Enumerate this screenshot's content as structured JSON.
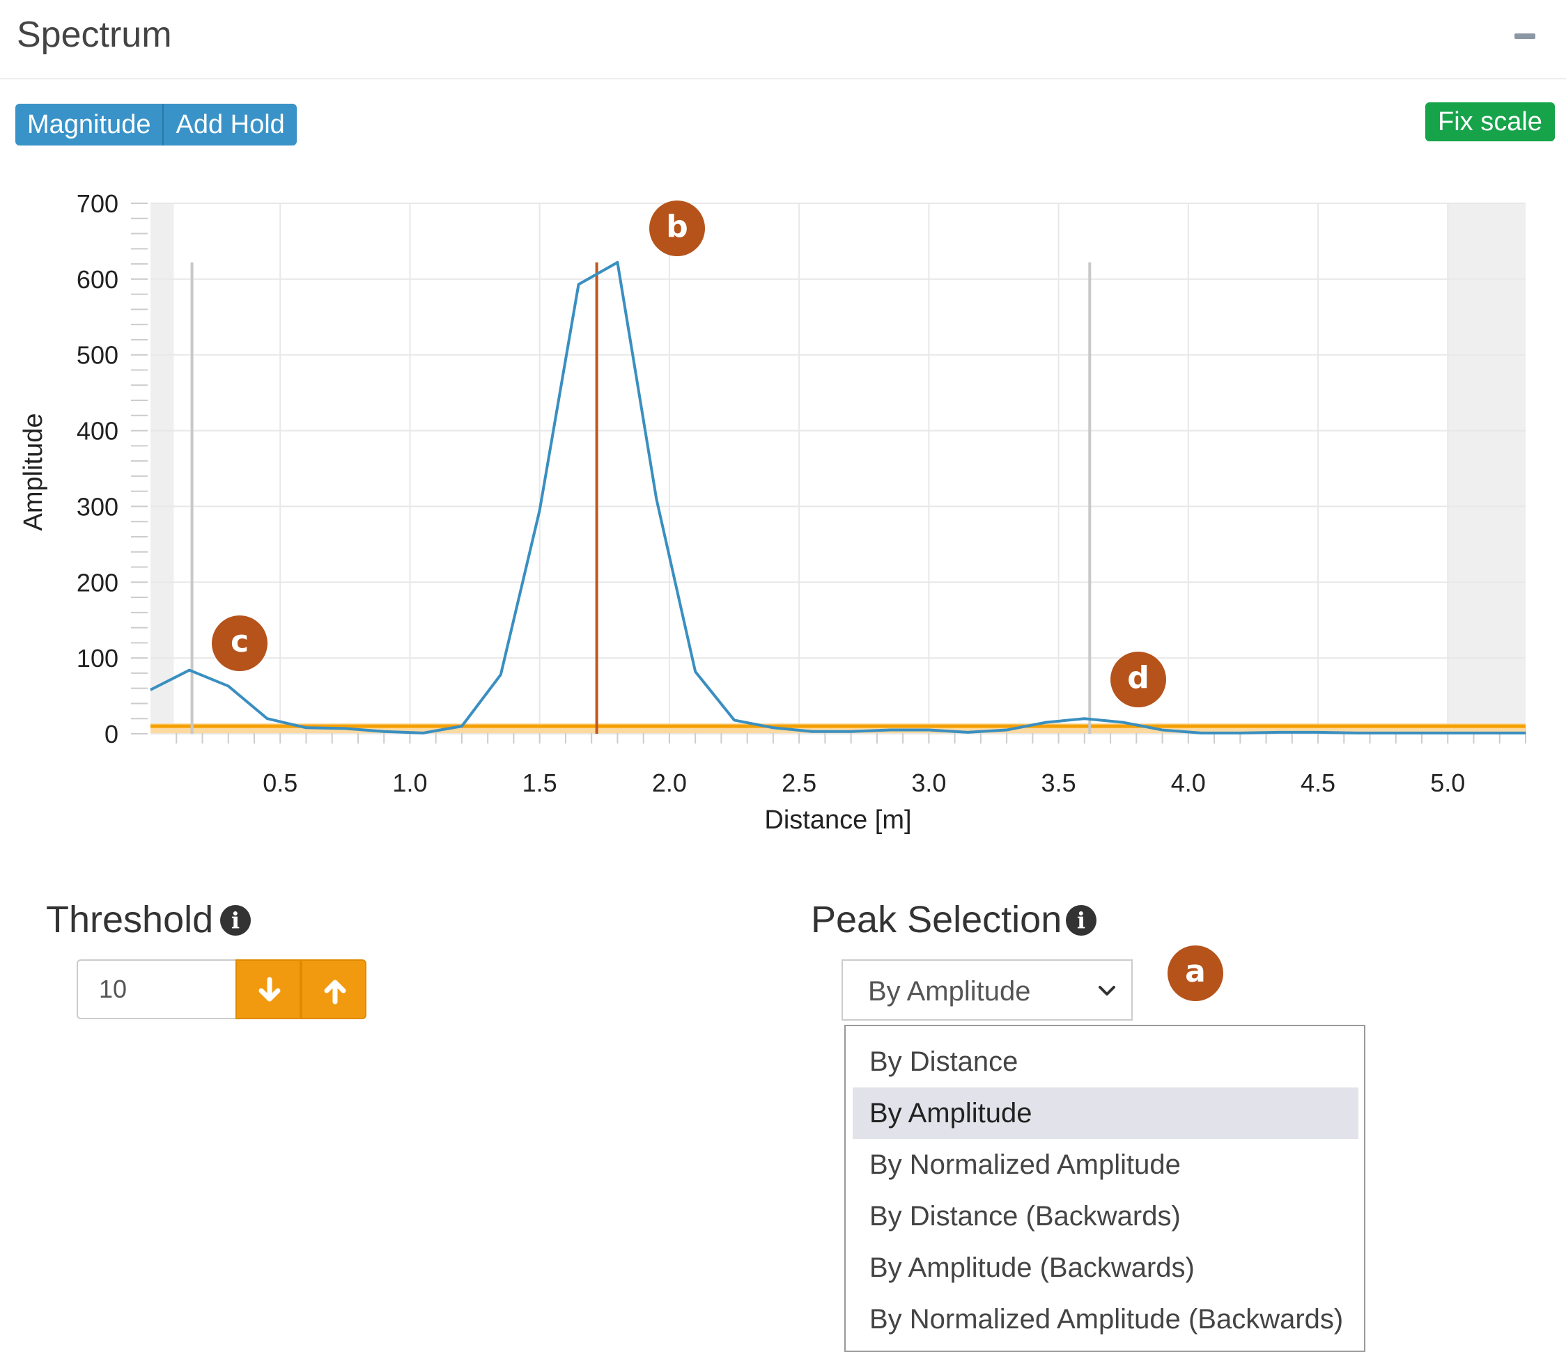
{
  "panel": {
    "title": "Spectrum",
    "collapse_icon": "minus-icon"
  },
  "toolbar": {
    "magnitude_label": "Magnitude",
    "add_hold_label": "Add Hold",
    "fix_scale_label": "Fix scale"
  },
  "colors": {
    "primary": "#3a93c8",
    "success": "#17a34a",
    "warning": "#f19a10",
    "badge": "#b5531b",
    "series": "#3a8fc0",
    "peak_marker": "#c0561c",
    "threshold_line": "#f5a000"
  },
  "chart_data": {
    "type": "line",
    "xlabel": "Distance [m]",
    "ylabel": "Amplitude",
    "xlim": [
      0.0,
      5.3
    ],
    "ylim": [
      0,
      700
    ],
    "x_ticks": [
      "0.5",
      "1.0",
      "1.5",
      "2.0",
      "2.5",
      "3.0",
      "3.5",
      "4.0",
      "4.5",
      "5.0"
    ],
    "y_ticks": [
      "0",
      "100",
      "200",
      "300",
      "400",
      "500",
      "600",
      "700"
    ],
    "grid": true,
    "shaded_ranges": [
      [
        0.0,
        0.09
      ],
      [
        5.0,
        5.3
      ]
    ],
    "series": [
      {
        "x": [
          0.0,
          0.15,
          0.3,
          0.45,
          0.6,
          0.75,
          0.9,
          1.05,
          1.2,
          1.35,
          1.5,
          1.65,
          1.8,
          1.95,
          2.1,
          2.25,
          2.4,
          2.55,
          2.7,
          2.85,
          3.0,
          3.15,
          3.3,
          3.45,
          3.6,
          3.75,
          3.9,
          4.05,
          4.2,
          4.35,
          4.5,
          4.65,
          4.8,
          4.95,
          5.1,
          5.3
        ],
        "y": [
          58,
          84,
          63,
          20,
          8,
          7,
          3,
          1,
          10,
          78,
          295,
          593,
          622,
          310,
          82,
          18,
          8,
          3,
          3,
          5,
          5,
          2,
          5,
          15,
          20,
          15,
          5,
          1,
          1,
          2,
          2,
          1,
          1,
          1,
          1,
          1
        ]
      }
    ],
    "threshold_y": 10,
    "peak_marker_x": 1.72,
    "gray_markers_x": [
      0.16,
      3.62
    ]
  },
  "threshold": {
    "label": "Threshold",
    "value": "10",
    "info_icon": "info-icon",
    "down_icon": "arrow-down-icon",
    "up_icon": "arrow-up-icon"
  },
  "peak_selection": {
    "label": "Peak Selection",
    "selected": "By Amplitude",
    "options": [
      "By Distance",
      "By Amplitude",
      "By Normalized Amplitude",
      "By Distance (Backwards)",
      "By Amplitude (Backwards)",
      "By Normalized Amplitude (Backwards)"
    ]
  },
  "badges": {
    "a": "a",
    "b": "b",
    "c": "c",
    "d": "d"
  }
}
